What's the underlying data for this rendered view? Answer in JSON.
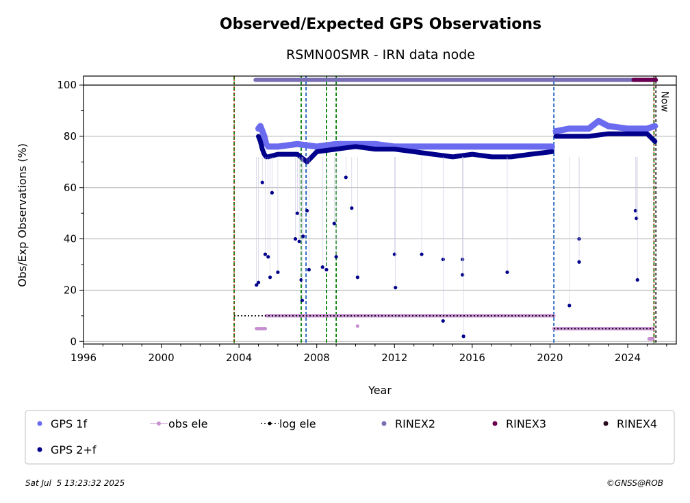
{
  "chart_data": {
    "type": "scatter",
    "title": "Observed/Expected GPS Observations",
    "subtitle": "RSMN00SMR - IRN data node",
    "xlabel": "Year",
    "ylabel": "Obs/Exp Observations (%)",
    "xlim": [
      1996,
      2026.5
    ],
    "ylim": [
      -1,
      103.5
    ],
    "x_ticks": [
      "1996",
      "2000",
      "2004",
      "2008",
      "2012",
      "2016",
      "2020",
      "2024"
    ],
    "y_ticks": [
      "0",
      "20",
      "40",
      "60",
      "80",
      "100"
    ],
    "grid": "horizontal",
    "now_label": "Now",
    "now_x": 2025.5,
    "vertical_markers": {
      "green": [
        2003.75,
        2007.2,
        2008.5,
        2009.0,
        2025.35
      ],
      "blue": [
        2007.45,
        2020.2
      ],
      "red": [
        2003.75,
        2025.35
      ],
      "black": [
        2025.45
      ]
    },
    "reference_line_y": 100,
    "series": [
      {
        "name": "GPS 1f",
        "color": "#6b6bf0",
        "segments": [
          {
            "x": [
              2005.0,
              2005.1,
              2005.2,
              2005.3,
              2005.4
            ],
            "y": [
              83,
              84,
              82,
              80,
              77
            ]
          },
          {
            "x": [
              2005.5,
              2006.0,
              2007.0,
              2008.0,
              2009.0,
              2010.0,
              2011.0,
              2012.0,
              2013.0,
              2014.0,
              2015.0,
              2016.0,
              2017.0,
              2018.0,
              2019.0,
              2020.1
            ],
            "y": [
              76,
              76,
              77,
              76,
              77,
              77,
              77,
              76,
              76,
              76,
              76,
              76,
              76,
              76,
              76,
              76
            ]
          },
          {
            "x": [
              2020.3,
              2021.0,
              2022.0,
              2022.5,
              2023.0,
              2024.0,
              2025.0,
              2025.4
            ],
            "y": [
              82,
              83,
              83,
              86,
              84,
              83,
              83,
              84
            ]
          }
        ]
      },
      {
        "name": "GPS 2+f",
        "color": "#00008b",
        "segments": [
          {
            "x": [
              2005.0,
              2005.1,
              2005.2,
              2005.3,
              2005.4
            ],
            "y": [
              80,
              78,
              75,
              73,
              72
            ]
          },
          {
            "x": [
              2005.5,
              2006.0,
              2007.0,
              2007.5,
              2008.0,
              2009.0,
              2010.0,
              2011.0,
              2012.0,
              2013.0,
              2014.0,
              2015.0,
              2016.0,
              2017.0,
              2018.0,
              2019.0,
              2020.1
            ],
            "y": [
              72,
              73,
              73,
              70,
              74,
              75,
              76,
              75,
              75,
              74,
              73,
              72,
              73,
              72,
              72,
              73,
              74
            ]
          },
          {
            "x": [
              2020.3,
              2021.0,
              2022.0,
              2023.0,
              2024.0,
              2025.0,
              2025.4
            ],
            "y": [
              80,
              80,
              80,
              81,
              81,
              81,
              78
            ]
          }
        ],
        "outliers": {
          "x": [
            2004.9,
            2005.0,
            2005.2,
            2005.35,
            2005.5,
            2005.6,
            2005.7,
            2006.0,
            2006.9,
            2007.0,
            2007.1,
            2007.2,
            2007.25,
            2007.3,
            2007.5,
            2007.6,
            2008.3,
            2008.5,
            2008.9,
            2009.0,
            2009.5,
            2009.8,
            2010.1,
            2012.0,
            2012.05,
            2013.4,
            2014.5,
            2014.5,
            2015.5,
            2015.5,
            2015.55,
            2017.8,
            2021.0,
            2021.5,
            2021.5,
            2024.4,
            2024.45,
            2024.5
          ],
          "y": [
            22,
            23,
            62,
            34,
            33,
            25,
            58,
            27,
            40,
            50,
            39,
            24,
            16,
            41,
            51,
            28,
            29,
            28,
            46,
            33,
            64,
            52,
            25,
            34,
            21,
            34,
            32,
            8,
            32,
            26,
            2,
            27,
            14,
            40,
            31,
            51,
            48,
            24
          ]
        }
      },
      {
        "name": "obs ele",
        "color": "#c68fd1",
        "segments": [
          {
            "x": [
              2004.9,
              2005.05,
              2005.2,
              2005.35
            ],
            "y": [
              5,
              5,
              5,
              5
            ]
          },
          {
            "x": [
              2005.4,
              2020.2
            ],
            "y": [
              10,
              10
            ]
          },
          {
            "x": [
              2020.2,
              2025.3
            ],
            "y": [
              5,
              5
            ]
          },
          {
            "x": [
              2025.1,
              2025.3
            ],
            "y": [
              1,
              1
            ]
          }
        ],
        "outliers": {
          "x": [
            2010.1
          ],
          "y": [
            6
          ]
        }
      },
      {
        "name": "log ele",
        "color": "#000000",
        "segments": [
          {
            "x": [
              2003.75,
              2020.2
            ],
            "y": [
              10,
              10
            ]
          },
          {
            "x": [
              2020.2,
              2025.35
            ],
            "y": [
              5,
              5
            ]
          }
        ]
      },
      {
        "name": "RINEX2",
        "color": "#7a6fb5",
        "segments": [
          {
            "x": [
              2004.85,
              2025.4
            ],
            "y": [
              102,
              102
            ]
          }
        ]
      },
      {
        "name": "RINEX3",
        "color": "#6a0052",
        "segments": [
          {
            "x": [
              2024.3,
              2025.45
            ],
            "y": [
              102,
              102
            ]
          }
        ]
      },
      {
        "name": "RINEX4",
        "color": "#2b0a1e",
        "segments": []
      }
    ],
    "legend_placement": "below plot",
    "legend": [
      "GPS 1f",
      "obs ele",
      "log ele",
      "RINEX2",
      "RINEX3",
      "RINEX4",
      "GPS 2+f"
    ]
  },
  "footer": {
    "timestamp": "Sat Jul  5 13:23:32 2025",
    "credit": "©GNSS@ROB"
  }
}
